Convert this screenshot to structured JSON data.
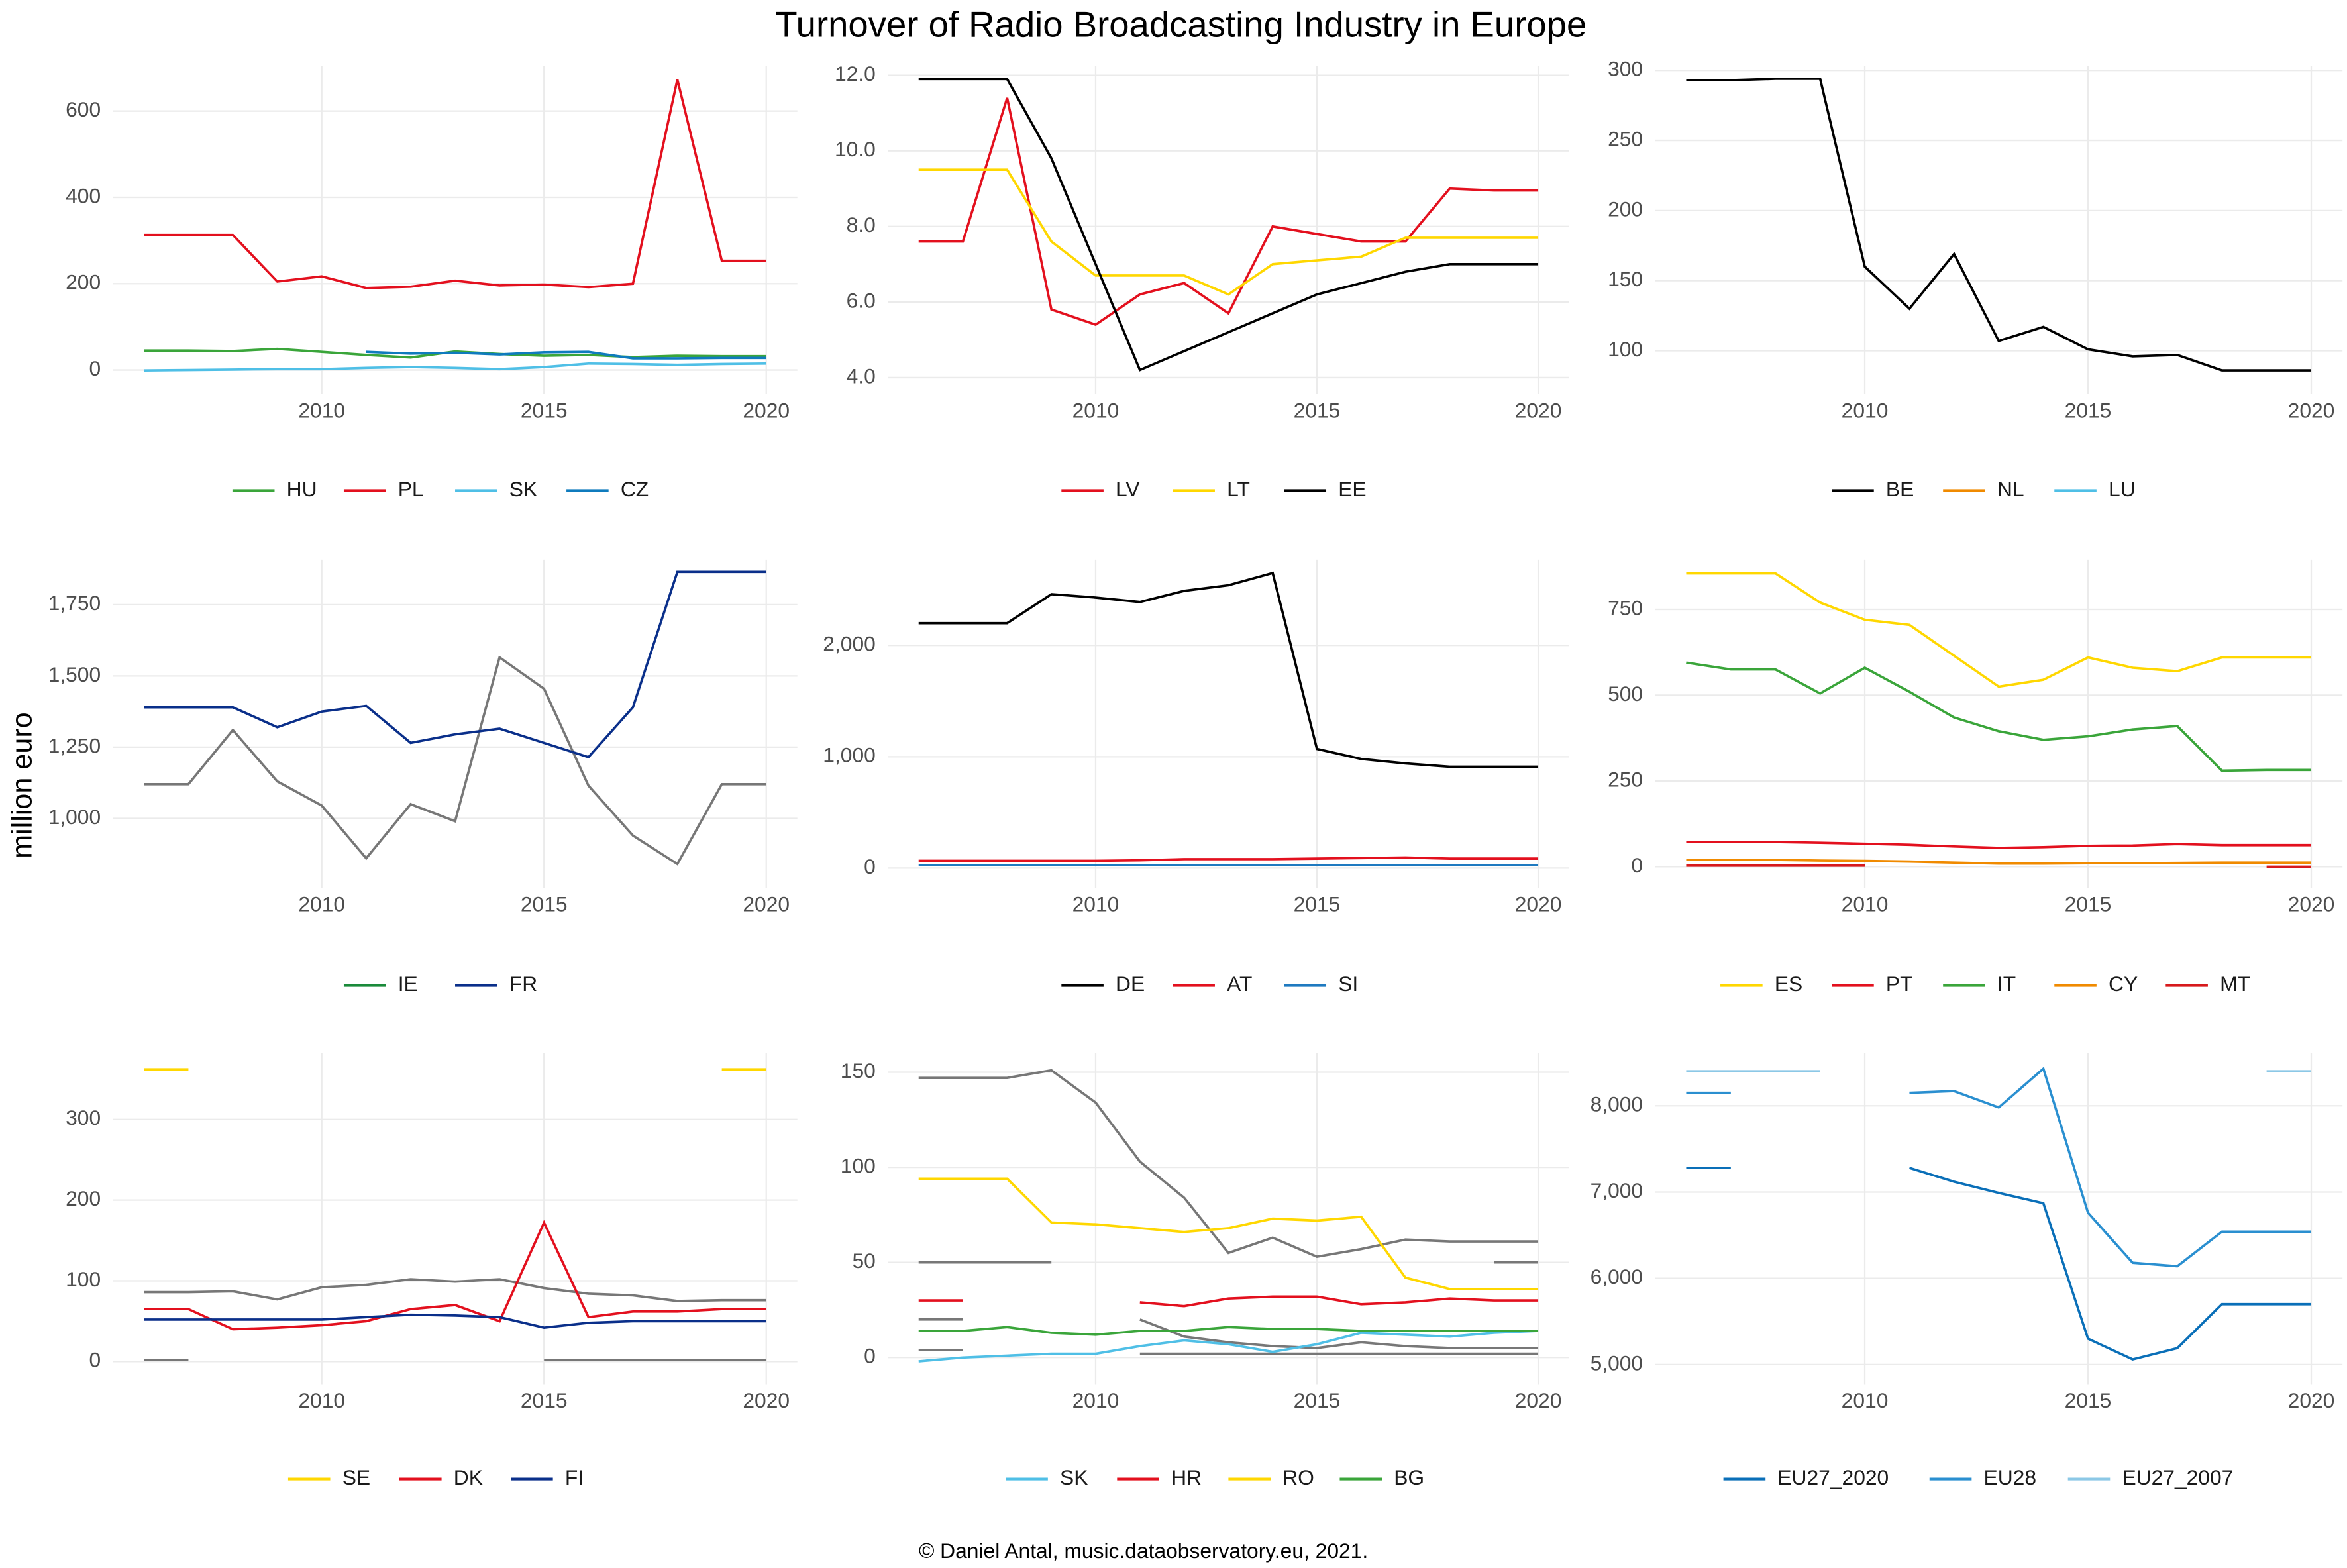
{
  "title": "Turnover of Radio Broadcasting Industry in Europe",
  "y_label": "million euro",
  "caption": "© Daniel Antal, music.dataobservatory.eu, 2021.",
  "chart_data": [
    {
      "type": "line",
      "x": [
        2006,
        2007,
        2008,
        2009,
        2010,
        2011,
        2012,
        2013,
        2014,
        2015,
        2016,
        2017,
        2018,
        2019,
        2020
      ],
      "xlim": [
        2005.3,
        2020.7
      ],
      "xticks": [
        2010,
        2015,
        2020
      ],
      "ylim": [
        -56,
        704
      ],
      "yticks": [
        0,
        200,
        400,
        600
      ],
      "series": [
        {
          "name": "HU",
          "color": "#3aa53a",
          "values": [
            45,
            45,
            44,
            49,
            42,
            35,
            29,
            43,
            37,
            33,
            35,
            30,
            33,
            32,
            32
          ]
        },
        {
          "name": "PL",
          "color": "#e3101e",
          "values": [
            313,
            313,
            313,
            205,
            217,
            190,
            193,
            207,
            196,
            198,
            192,
            200,
            673,
            253,
            253
          ]
        },
        {
          "name": "SK",
          "color": "#4fbfe6",
          "values": [
            -1,
            0,
            1,
            2,
            2,
            5,
            7,
            5,
            2,
            7,
            15,
            14,
            12,
            14,
            15
          ]
        },
        {
          "name": "CZ",
          "color": "#0f7bbd",
          "values": [
            null,
            null,
            null,
            null,
            null,
            42,
            38,
            40,
            36,
            41,
            42,
            27,
            27,
            28,
            28
          ]
        }
      ]
    },
    {
      "type": "line",
      "x": [
        2006,
        2007,
        2008,
        2009,
        2010,
        2011,
        2012,
        2013,
        2014,
        2015,
        2016,
        2017,
        2018,
        2019,
        2020
      ],
      "xlim": [
        2005.3,
        2020.7
      ],
      "xticks": [
        2010,
        2015,
        2020
      ],
      "ylim": [
        3.56,
        12.24
      ],
      "yticks": [
        {
          "value": 4,
          "label": "4.0"
        },
        {
          "value": 6,
          "label": "6.0"
        },
        {
          "value": 8,
          "label": "8.0"
        },
        {
          "value": 10,
          "label": "10.0"
        },
        {
          "value": 12,
          "label": "12.0"
        }
      ],
      "series": [
        {
          "name": "LV",
          "color": "#e3101e",
          "values": [
            7.6,
            7.6,
            11.4,
            5.8,
            5.4,
            6.2,
            6.5,
            5.7,
            8,
            7.8,
            7.6,
            7.6,
            9,
            8.95,
            8.95
          ]
        },
        {
          "name": "LT",
          "color": "#ffd700",
          "values": [
            9.5,
            9.5,
            9.5,
            7.6,
            6.7,
            6.7,
            6.7,
            6.2,
            7,
            7.1,
            7.2,
            7.7,
            7.7,
            7.7,
            7.7
          ]
        },
        {
          "name": "EE",
          "color": "#000000",
          "values": [
            11.9,
            11.9,
            11.9,
            9.8,
            7,
            4.2,
            4.7,
            5.2,
            5.7,
            6.2,
            6.5,
            6.8,
            7,
            7,
            7
          ]
        }
      ]
    },
    {
      "type": "line",
      "x": [
        2006,
        2007,
        2008,
        2009,
        2010,
        2011,
        2012,
        2013,
        2014,
        2015,
        2016,
        2017,
        2018,
        2019,
        2020
      ],
      "xlim": [
        2005.3,
        2020.7
      ],
      "xticks": [
        2010,
        2015,
        2020
      ],
      "ylim": [
        69,
        303
      ],
      "yticks": [
        100,
        150,
        200,
        250,
        300
      ],
      "series": [
        {
          "name": "BE",
          "color": "#000000",
          "values": [
            293,
            293,
            294,
            294,
            160,
            130,
            169,
            107,
            117,
            101,
            96,
            97,
            86,
            86,
            86
          ]
        },
        {
          "name": "NL",
          "color": "#f08a00",
          "values": [
            null,
            null,
            null,
            null,
            null,
            null,
            null,
            null,
            null,
            null,
            null,
            null,
            null,
            null,
            null
          ]
        },
        {
          "name": "LU",
          "color": "#4fbfe6",
          "values": [
            null,
            null,
            null,
            null,
            null,
            null,
            null,
            null,
            null,
            null,
            null,
            null,
            null,
            null,
            null
          ]
        }
      ]
    },
    {
      "type": "line",
      "x": [
        2006,
        2007,
        2008,
        2009,
        2010,
        2011,
        2012,
        2013,
        2014,
        2015,
        2016,
        2017,
        2018,
        2019,
        2020
      ],
      "xlim": [
        2005.3,
        2020.7
      ],
      "xticks": [
        2010,
        2015,
        2020
      ],
      "ylim": [
        757,
        1908
      ],
      "yticks": [
        {
          "value": 1000,
          "label": "1,000"
        },
        {
          "value": 1250,
          "label": "1,250"
        },
        {
          "value": 1500,
          "label": "1,500"
        },
        {
          "value": 1750,
          "label": "1,750"
        }
      ],
      "series": [
        {
          "color": "#777777",
          "values": [
            1120,
            1120,
            1310,
            1130,
            1045,
            860,
            1050,
            990,
            1565,
            1455,
            1115,
            940,
            840,
            1120,
            1120
          ]
        },
        {
          "name": "IE",
          "color": "#1a8a3a",
          "values": [
            null,
            null,
            null,
            null,
            null,
            null,
            null,
            null,
            null,
            null,
            null,
            null,
            null,
            null,
            null
          ]
        },
        {
          "name": "FR",
          "color": "#0a2f8a",
          "values": [
            1390,
            1390,
            1390,
            1320,
            1375,
            1395,
            1265,
            1295,
            1315,
            1265,
            1215,
            1390,
            1865,
            1865,
            1865
          ]
        }
      ]
    },
    {
      "type": "line",
      "x": [
        2006,
        2007,
        2008,
        2009,
        2010,
        2011,
        2012,
        2013,
        2014,
        2015,
        2016,
        2017,
        2018,
        2019,
        2020
      ],
      "xlim": [
        2005.3,
        2020.7
      ],
      "xticks": [
        2010,
        2015,
        2020
      ],
      "ylim": [
        -176,
        2770
      ],
      "yticks": [
        0,
        {
          "value": 1000,
          "label": "1,000"
        },
        {
          "value": 2000,
          "label": "2,000"
        }
      ],
      "series": [
        {
          "name": "DE",
          "color": "#000000",
          "values": [
            2200,
            2200,
            2200,
            2460,
            2430,
            2390,
            2490,
            2540,
            2650,
            1070,
            980,
            940,
            910,
            910,
            910
          ]
        },
        {
          "name": "AT",
          "color": "#e3101e",
          "values": [
            65,
            65,
            65,
            65,
            65,
            70,
            80,
            80,
            80,
            85,
            90,
            95,
            85,
            85,
            85
          ]
        },
        {
          "name": "SI",
          "color": "#1f7ac0",
          "values": [
            25,
            25,
            25,
            25,
            25,
            25,
            25,
            25,
            25,
            25,
            25,
            25,
            25,
            25,
            25
          ]
        }
      ]
    },
    {
      "type": "line",
      "x": [
        2006,
        2007,
        2008,
        2009,
        2010,
        2011,
        2012,
        2013,
        2014,
        2015,
        2016,
        2017,
        2018,
        2019,
        2020
      ],
      "xlim": [
        2005.3,
        2020.7
      ],
      "xticks": [
        2010,
        2015,
        2020
      ],
      "ylim": [
        -61,
        895
      ],
      "yticks": [
        0,
        250,
        500,
        750
      ],
      "series": [
        {
          "name": "ES",
          "color": "#ffd700",
          "values": [
            855,
            855,
            855,
            770,
            720,
            705,
            615,
            525,
            545,
            610,
            580,
            570,
            610,
            610,
            610
          ]
        },
        {
          "name": "PT",
          "color": "#e3101e",
          "values": [
            72,
            72,
            72,
            70,
            67,
            64,
            59,
            55,
            57,
            61,
            62,
            66,
            63,
            63,
            63
          ]
        },
        {
          "name": "IT",
          "color": "#3aa53a",
          "values": [
            595,
            575,
            575,
            505,
            580,
            510,
            435,
            395,
            370,
            380,
            400,
            410,
            280,
            282,
            282
          ]
        },
        {
          "name": "CY",
          "color": "#f08a00",
          "values": [
            20,
            20,
            20,
            18,
            17,
            15,
            12,
            9,
            9,
            10,
            10,
            11,
            12,
            12,
            12
          ]
        },
        {
          "name": "MT",
          "color": "#d7191c",
          "values": [
            3,
            3,
            3,
            3,
            3,
            null,
            null,
            null,
            null,
            null,
            null,
            null,
            null,
            0,
            0
          ]
        }
      ]
    },
    {
      "type": "line",
      "x": [
        2006,
        2007,
        2008,
        2009,
        2010,
        2011,
        2012,
        2013,
        2014,
        2015,
        2016,
        2017,
        2018,
        2019,
        2020
      ],
      "xlim": [
        2005.3,
        2020.7
      ],
      "xticks": [
        2010,
        2015,
        2020
      ],
      "ylim": [
        -28,
        382
      ],
      "yticks": [
        0,
        100,
        200,
        300
      ],
      "series": [
        {
          "color": "#777777",
          "values": [
            86,
            86,
            87,
            77,
            92,
            95,
            102,
            99,
            102,
            91,
            84,
            82,
            75,
            76,
            76
          ]
        },
        {
          "color": "#777777",
          "values": [
            2,
            2,
            null,
            null,
            null,
            null,
            null,
            null,
            null,
            2,
            2,
            2,
            2,
            2,
            2
          ]
        },
        {
          "name": "SE",
          "color": "#ffd700",
          "values": [
            362,
            362,
            null,
            null,
            null,
            null,
            null,
            null,
            null,
            null,
            null,
            null,
            null,
            362,
            362
          ]
        },
        {
          "name": "DK",
          "color": "#e3101e",
          "values": [
            65,
            65,
            40,
            42,
            45,
            50,
            65,
            70,
            50,
            172,
            55,
            62,
            62,
            65,
            65
          ]
        },
        {
          "name": "FI",
          "color": "#0a2f8a",
          "values": [
            52,
            52,
            52,
            52,
            52,
            55,
            58,
            57,
            55,
            42,
            48,
            50,
            50,
            50,
            50
          ]
        }
      ]
    },
    {
      "type": "line",
      "x": [
        2006,
        2007,
        2008,
        2009,
        2010,
        2011,
        2012,
        2013,
        2014,
        2015,
        2016,
        2017,
        2018,
        2019,
        2020
      ],
      "xlim": [
        2005.3,
        2020.7
      ],
      "xticks": [
        2010,
        2015,
        2020
      ],
      "ylim": [
        -14,
        160
      ],
      "yticks": [
        0,
        50,
        100,
        150
      ],
      "series": [
        {
          "color": "#777777",
          "values": [
            147,
            147,
            147,
            151,
            134,
            103,
            84,
            55,
            63,
            53,
            57,
            62,
            61,
            61,
            61
          ]
        },
        {
          "color": "#777777",
          "values": [
            50,
            50,
            50,
            50,
            null,
            null,
            null,
            null,
            null,
            null,
            null,
            null,
            null,
            50,
            50
          ]
        },
        {
          "color": "#777777",
          "values": [
            20,
            20,
            null,
            null,
            null,
            20,
            11,
            8,
            6,
            5,
            8,
            6,
            5,
            5,
            5
          ]
        },
        {
          "color": "#777777",
          "values": [
            4,
            4,
            null,
            null,
            null,
            2,
            2,
            2,
            2,
            2,
            2,
            2,
            2,
            2,
            2
          ]
        },
        {
          "name": "SK",
          "color": "#4fbfe6",
          "values": [
            -2,
            0,
            1,
            2,
            2,
            6,
            9,
            7,
            3,
            7,
            13,
            12,
            11,
            13,
            14
          ]
        },
        {
          "name": "HR",
          "color": "#e3101e",
          "values": [
            30,
            30,
            null,
            null,
            null,
            29,
            27,
            31,
            32,
            32,
            28,
            29,
            31,
            30,
            30
          ]
        },
        {
          "name": "RO",
          "color": "#ffd700",
          "values": [
            94,
            94,
            94,
            71,
            70,
            68,
            66,
            68,
            73,
            72,
            74,
            42,
            36,
            36,
            36
          ]
        },
        {
          "name": "BG",
          "color": "#3aa53a",
          "values": [
            14,
            14,
            16,
            13,
            12,
            14,
            14,
            16,
            15,
            15,
            14,
            14,
            14,
            14,
            14
          ]
        }
      ]
    },
    {
      "type": "line",
      "x": [
        2006,
        2007,
        2008,
        2009,
        2010,
        2011,
        2012,
        2013,
        2014,
        2015,
        2016,
        2017,
        2018,
        2019,
        2020
      ],
      "xlim": [
        2005.3,
        2020.7
      ],
      "xticks": [
        2010,
        2015,
        2020
      ],
      "ylim": [
        4773,
        8610
      ],
      "yticks": [
        {
          "value": 5000,
          "label": "5,000"
        },
        {
          "value": 6000,
          "label": "6,000"
        },
        {
          "value": 7000,
          "label": "7,000"
        },
        {
          "value": 8000,
          "label": "8,000"
        }
      ],
      "series": [
        {
          "name": "EU27_2020",
          "color": "#0a6fb8",
          "values": [
            7280,
            7280,
            null,
            null,
            null,
            7280,
            7120,
            6990,
            6870,
            5300,
            5060,
            5190,
            5700,
            5700,
            5700
          ]
        },
        {
          "name": "EU28",
          "color": "#2a8fd0",
          "values": [
            8150,
            8150,
            null,
            null,
            null,
            8150,
            8170,
            7980,
            8430,
            6760,
            6180,
            6140,
            6540,
            6540,
            6540
          ]
        },
        {
          "name": "EU27_2007",
          "color": "#8cc8e6",
          "values": [
            8400,
            8400,
            8400,
            8400,
            null,
            null,
            null,
            null,
            null,
            null,
            null,
            null,
            null,
            8400,
            8400
          ]
        }
      ]
    }
  ]
}
